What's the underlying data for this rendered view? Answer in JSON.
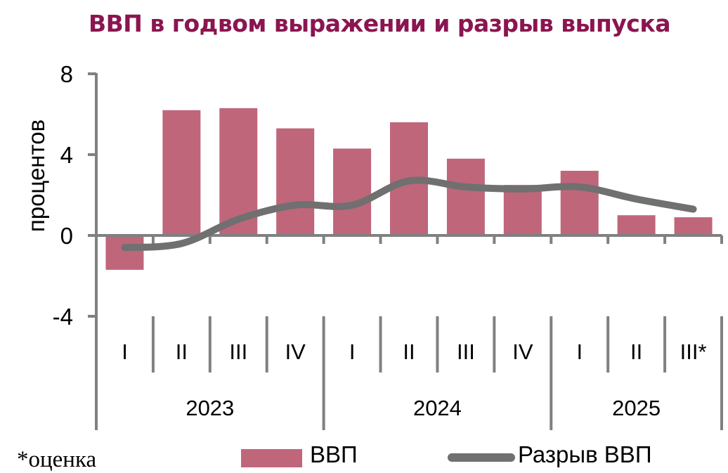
{
  "title": "ВВП в годвом выражении и разрыв выпуска",
  "y_axis": {
    "label": "процентов",
    "ticks": [
      "8",
      "4",
      "0",
      "-4"
    ]
  },
  "x_axis": {
    "quarters": [
      "I",
      "II",
      "III",
      "IV",
      "I",
      "II",
      "III",
      "IV",
      "I",
      "II",
      "III*"
    ],
    "years": [
      "2023",
      "2024",
      "2025"
    ]
  },
  "legend": {
    "bar_label": "ВВП",
    "line_label": "Разрыв ВВП"
  },
  "footnote": "*оценка",
  "colors": {
    "title": "#8B1550",
    "bar": "#BF667B",
    "line": "#707070",
    "axis": "#808080"
  },
  "chart_data": {
    "type": "bar",
    "title": "ВВП в годвом выражении и разрыв выпуска",
    "xlabel": "",
    "ylabel": "процентов",
    "ylim": [
      -4,
      8
    ],
    "yticks": [
      -4,
      0,
      4,
      8
    ],
    "grid": false,
    "legend_position": "bottom",
    "categories": [
      "2023 I",
      "2023 II",
      "2023 III",
      "2023 IV",
      "2024 I",
      "2024 II",
      "2024 III",
      "2024 IV",
      "2025 I",
      "2025 II",
      "2025 III*"
    ],
    "series": [
      {
        "name": "ВВП",
        "type": "bar",
        "values": [
          -1.7,
          6.2,
          6.3,
          5.3,
          4.3,
          5.6,
          3.8,
          2.5,
          3.2,
          1.0,
          0.9
        ]
      },
      {
        "name": "Разрыв ВВП",
        "type": "line",
        "smooth": true,
        "values": [
          -0.6,
          -0.4,
          0.8,
          1.5,
          1.5,
          2.7,
          2.4,
          2.3,
          2.4,
          1.8,
          1.3
        ]
      }
    ],
    "annotations": [
      "*оценка"
    ]
  }
}
